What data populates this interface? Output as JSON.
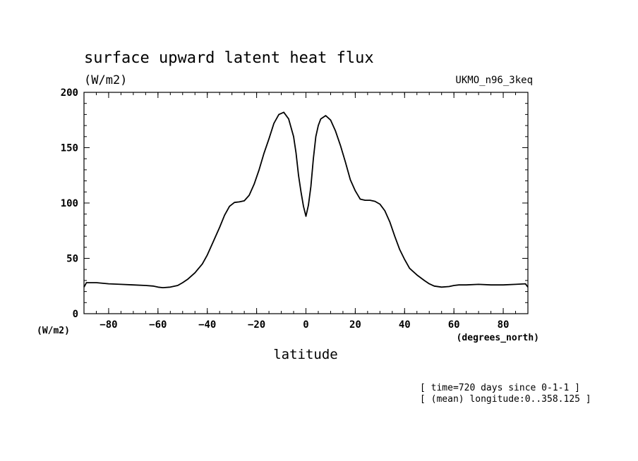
{
  "chart_data": {
    "type": "line",
    "title": "surface upward latent heat flux",
    "units_label": "(W/m2)",
    "model_label": "UKMO_n96_3keq",
    "xlabel": "latitude",
    "x_units": "(degrees_north)",
    "y_units": "(W/m2)",
    "xlim": [
      -90,
      90
    ],
    "ylim": [
      0,
      200
    ],
    "x_ticks": [
      -80,
      -60,
      -40,
      -20,
      0,
      20,
      40,
      60,
      80
    ],
    "y_ticks": [
      0,
      50,
      100,
      150,
      200
    ],
    "grid": false,
    "notes": [
      "[ time=720 days since 0-1-1 ]",
      "[ (mean) longitude:0..358.125 ]"
    ],
    "series": [
      {
        "x": [
          -90,
          -89,
          -85,
          -80,
          -75,
          -70,
          -65,
          -62,
          -60,
          -58,
          -55,
          -52,
          -50,
          -48,
          -45,
          -42,
          -40,
          -38,
          -35,
          -33,
          -31,
          -29,
          -27,
          -25,
          -23,
          -21,
          -19,
          -17,
          -15,
          -13,
          -11,
          -9,
          -7,
          -5,
          -4,
          -3,
          -2,
          -1,
          0,
          1,
          2,
          3,
          4,
          5,
          6,
          8,
          10,
          12,
          14,
          16,
          18,
          20,
          22,
          24,
          26,
          28,
          30,
          32,
          34,
          36,
          38,
          40,
          42,
          45,
          48,
          50,
          52,
          55,
          58,
          60,
          62,
          65,
          70,
          75,
          80,
          85,
          89,
          90
        ],
        "y": [
          24,
          28,
          28,
          27,
          26.5,
          26,
          25.5,
          25,
          24,
          23.5,
          24,
          25.5,
          28,
          31,
          37,
          45,
          53,
          63,
          78,
          89,
          97,
          100.5,
          101,
          102,
          107,
          117,
          130,
          145,
          158,
          172,
          180,
          182,
          176,
          160,
          145,
          125,
          110,
          97,
          88,
          98,
          115,
          140,
          160,
          170,
          176,
          179,
          175,
          165,
          152,
          137,
          121,
          111,
          103.5,
          102.5,
          102.5,
          101.5,
          99,
          93,
          83,
          70,
          58,
          49,
          41,
          35,
          30,
          27,
          25,
          24,
          24.5,
          25.5,
          26,
          26,
          26.5,
          26,
          26,
          26.5,
          27,
          24
        ]
      }
    ]
  }
}
